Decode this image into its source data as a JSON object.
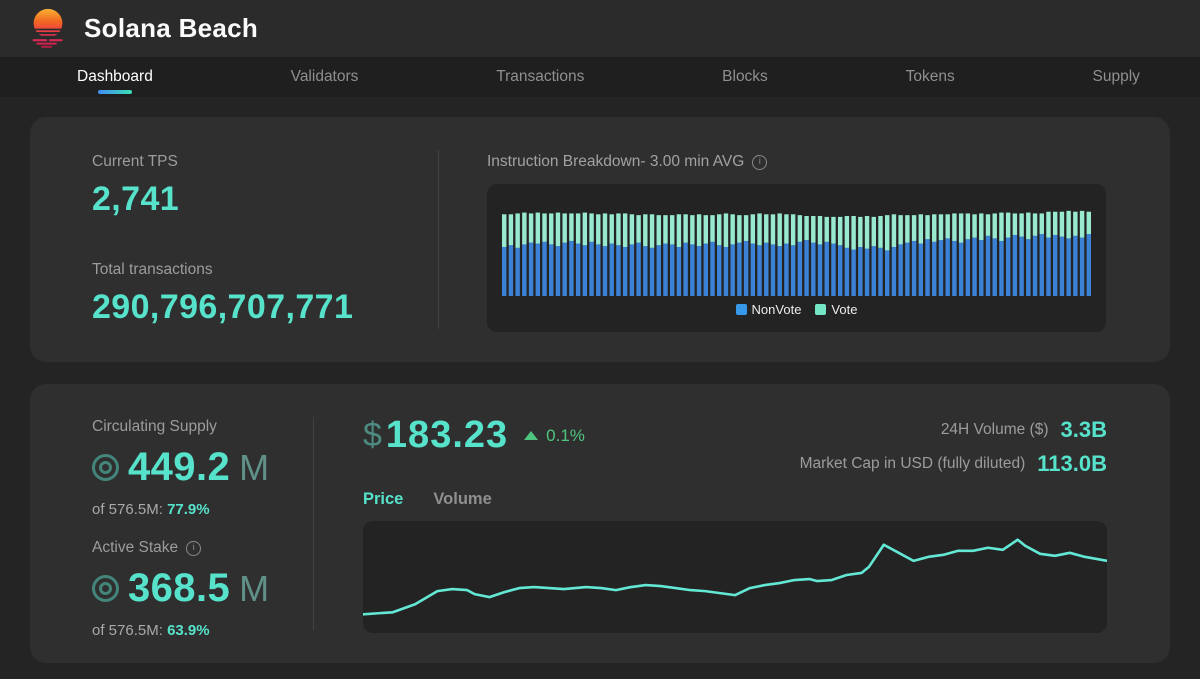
{
  "header": {
    "title": "Solana Beach"
  },
  "nav": {
    "items": [
      {
        "label": "Dashboard",
        "active": true
      },
      {
        "label": "Validators",
        "active": false
      },
      {
        "label": "Transactions",
        "active": false
      },
      {
        "label": "Blocks",
        "active": false
      },
      {
        "label": "Tokens",
        "active": false
      },
      {
        "label": "Supply",
        "active": false
      }
    ]
  },
  "stats_card": {
    "current_tps": {
      "label": "Current TPS",
      "value": "2,741"
    },
    "total_transactions": {
      "label": "Total transactions",
      "value": "290,796,707,771"
    },
    "instruction_breakdown": {
      "title": "Instruction Breakdown- 3.00 min AVG"
    },
    "legend": {
      "nonvote": "NonVote",
      "vote": "Vote"
    }
  },
  "market_card": {
    "circulating_supply": {
      "label": "Circulating Supply",
      "value": "449.2",
      "unit": "M",
      "sub_label": "of 576.5M:",
      "sub_value": "77.9%"
    },
    "active_stake": {
      "label": "Active Stake",
      "value": "368.5",
      "unit": "M",
      "sub_label": "of 576.5M:",
      "sub_value": "63.9%"
    },
    "price": {
      "currency": "$",
      "value": "183.23",
      "change": "0.1%",
      "direction": "up"
    },
    "tabs": [
      {
        "label": "Price",
        "active": true
      },
      {
        "label": "Volume",
        "active": false
      }
    ],
    "volume_24h": {
      "label": "24H Volume ($)",
      "value": "3.3B"
    },
    "market_cap": {
      "label": "Market Cap in USD (fully diluted)",
      "value": "113.0B"
    }
  },
  "colors": {
    "accent": "#57e3cb",
    "accent_muted": "#4d8b81",
    "unit_color": "#5f9189",
    "change_up": "#4fc57f",
    "nonvote": "#3b82d6",
    "vote": "#98e9cf",
    "nonvote_legend": "#3598e8",
    "vote_legend": "#74e6c6",
    "line": "#64e8d6"
  },
  "chart_data": [
    {
      "type": "bar",
      "name": "instruction-breakdown",
      "title": "Instruction Breakdown- 3.00 min AVG",
      "stacked": true,
      "legend_position": "bottom",
      "grid": false,
      "ylim": [
        0,
        100
      ],
      "unit": "percent of panel height",
      "series": [
        {
          "name": "NonVote",
          "values": [
            57,
            59,
            56,
            60,
            62,
            61,
            63,
            60,
            58,
            62,
            64,
            61,
            59,
            63,
            60,
            58,
            61,
            59,
            57,
            60,
            62,
            58,
            56,
            59,
            61,
            60,
            57,
            62,
            60,
            58,
            61,
            63,
            59,
            57,
            60,
            62,
            64,
            61,
            59,
            62,
            60,
            58,
            61,
            59,
            63,
            65,
            62,
            60,
            63,
            61,
            59,
            56,
            54,
            57,
            55,
            58,
            56,
            53,
            57,
            60,
            62,
            64,
            61,
            66,
            63,
            65,
            67,
            64,
            62,
            66,
            68,
            65,
            70,
            67,
            64,
            68,
            71,
            69,
            66,
            70,
            72,
            68,
            71,
            69,
            67,
            70,
            68,
            72
          ]
        },
        {
          "name": "Vote",
          "values": [
            38,
            36,
            40,
            37,
            34,
            36,
            33,
            36,
            39,
            34,
            32,
            35,
            38,
            33,
            35,
            38,
            34,
            37,
            39,
            35,
            32,
            37,
            39,
            35,
            33,
            34,
            38,
            33,
            34,
            37,
            33,
            31,
            36,
            39,
            35,
            32,
            30,
            34,
            37,
            33,
            35,
            38,
            34,
            36,
            31,
            28,
            31,
            33,
            29,
            31,
            33,
            37,
            39,
            35,
            38,
            34,
            37,
            41,
            38,
            34,
            32,
            30,
            34,
            28,
            32,
            30,
            28,
            32,
            34,
            30,
            27,
            31,
            25,
            29,
            33,
            29,
            25,
            27,
            31,
            26,
            24,
            30,
            27,
            29,
            32,
            28,
            31,
            26
          ]
        }
      ]
    },
    {
      "type": "line",
      "name": "price-history",
      "title": "Price",
      "grid": false,
      "xlim": [
        0,
        100
      ],
      "ylim": [
        0,
        100
      ],
      "unit": "normalized, y measured up from panel bottom",
      "points": [
        [
          0,
          13
        ],
        [
          4,
          15
        ],
        [
          7,
          23
        ],
        [
          10,
          36
        ],
        [
          12,
          38
        ],
        [
          14,
          37
        ],
        [
          15,
          33
        ],
        [
          17,
          30
        ],
        [
          19,
          35
        ],
        [
          21,
          39
        ],
        [
          23,
          40
        ],
        [
          25,
          39
        ],
        [
          27,
          38
        ],
        [
          30,
          40
        ],
        [
          32,
          39
        ],
        [
          34,
          37
        ],
        [
          36,
          40
        ],
        [
          38,
          42
        ],
        [
          40,
          41
        ],
        [
          42,
          39
        ],
        [
          44,
          37
        ],
        [
          46,
          36
        ],
        [
          48,
          34
        ],
        [
          50,
          32
        ],
        [
          52,
          39
        ],
        [
          54,
          42
        ],
        [
          56,
          44
        ],
        [
          58,
          47
        ],
        [
          60,
          48
        ],
        [
          61,
          46
        ],
        [
          63,
          47
        ],
        [
          65,
          52
        ],
        [
          67,
          54
        ],
        [
          68,
          60
        ],
        [
          70,
          82
        ],
        [
          72,
          74
        ],
        [
          74,
          66
        ],
        [
          76,
          70
        ],
        [
          78,
          72
        ],
        [
          80,
          76
        ],
        [
          82,
          76
        ],
        [
          84,
          79
        ],
        [
          86,
          77
        ],
        [
          88,
          87
        ],
        [
          89,
          81
        ],
        [
          91,
          73
        ],
        [
          93,
          71
        ],
        [
          95,
          74
        ],
        [
          97,
          70
        ],
        [
          100,
          66
        ]
      ]
    }
  ]
}
